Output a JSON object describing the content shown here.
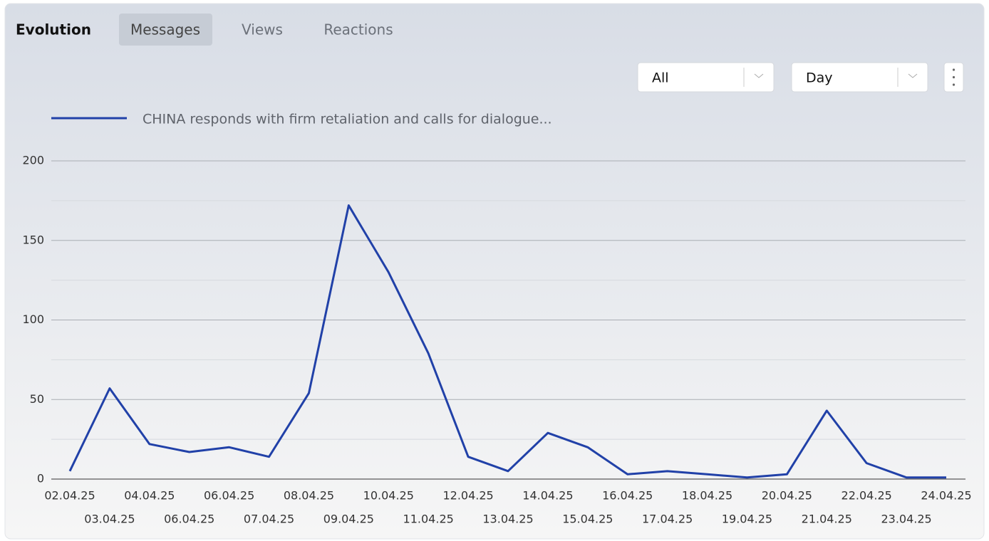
{
  "tabs": {
    "title": "Evolution",
    "items": [
      "Messages",
      "Views",
      "Reactions"
    ]
  },
  "controls": {
    "filter": "All",
    "period": "Day"
  },
  "chart_data": {
    "type": "line",
    "categories": [
      "02.04.25",
      "03.04.25",
      "04.04.25",
      "06.04.25",
      "06.04.25",
      "07.04.25",
      "08.04.25",
      "09.04.25",
      "10.04.25",
      "11.04.25",
      "12.04.25",
      "13.04.25",
      "14.04.25",
      "15.04.25",
      "16.04.25",
      "17.04.25",
      "18.04.25",
      "19.04.25",
      "20.04.25",
      "21.04.25",
      "22.04.25",
      "23.04.25",
      "24.04.25"
    ],
    "series": [
      {
        "name": "CHINA responds with firm retaliation and calls for dialogue...",
        "color": "#2141a8",
        "values": [
          5,
          57,
          22,
          17,
          20,
          14,
          54,
          172,
          130,
          79,
          14,
          5,
          29,
          20,
          3,
          5,
          3,
          1,
          3,
          43,
          10,
          1,
          1
        ]
      }
    ],
    "ylim": [
      0,
      200
    ],
    "yticks": [
      0,
      50,
      100,
      150,
      200
    ],
    "y_minor_ticks": [
      25,
      75,
      125,
      175
    ],
    "grid": true
  }
}
